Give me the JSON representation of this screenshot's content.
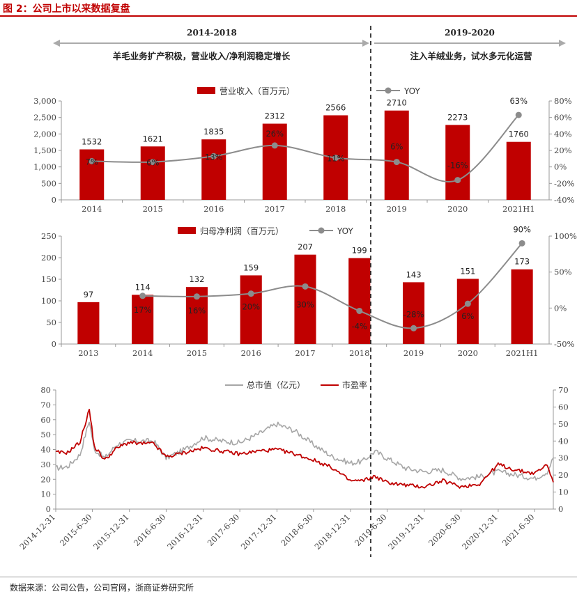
{
  "figure": {
    "title": "图 2：公司上市以来数据复盘",
    "source": "数据来源：公司公告，公司官网，浙商证券研究所"
  },
  "periods": [
    {
      "label": "2014-2018",
      "description": "羊毛业务扩产积极，营业收入/净利润稳定增长"
    },
    {
      "label": "2019-2020",
      "description": "注入羊绒业务，试水多元化运营"
    }
  ],
  "colors": {
    "bar": "#c00000",
    "yoy": "#8c8c8c",
    "mcap": "#a6a6a6",
    "pe": "#c00000",
    "accent": "#c00000"
  },
  "chart_data": [
    {
      "type": "bar",
      "categories": [
        "2014",
        "2015",
        "2016",
        "2017",
        "2018",
        "2019",
        "2020",
        "2021H1"
      ],
      "series": [
        {
          "name": "营业收入（百万元）",
          "axis": "left",
          "values": [
            1532,
            1621,
            1835,
            2312,
            2566,
            2710,
            2273,
            1760
          ]
        },
        {
          "name": "YOY",
          "type": "line",
          "axis": "right",
          "values": [
            7,
            6,
            13,
            26,
            11,
            6,
            -16,
            63
          ],
          "labels": [
            "7%",
            "6%",
            "13%",
            "26%",
            "11%",
            "6%",
            "-16%",
            "63%"
          ]
        }
      ],
      "y_left": {
        "min": 0,
        "max": 3000,
        "ticks": [
          "0",
          "500",
          "1,000",
          "1,500",
          "2,000",
          "2,500",
          "3,000"
        ]
      },
      "y_right": {
        "min": -40,
        "max": 80,
        "ticks": [
          "-40%",
          "-20%",
          "0%",
          "20%",
          "40%",
          "60%",
          "80%"
        ]
      },
      "legend": "top-center"
    },
    {
      "type": "bar",
      "categories": [
        "2013",
        "2014",
        "2015",
        "2016",
        "2017",
        "2018",
        "2019",
        "2020",
        "2021H1"
      ],
      "series": [
        {
          "name": "归母净利润（百万元）",
          "axis": "left",
          "values": [
            97,
            114,
            132,
            159,
            207,
            199,
            143,
            151,
            173
          ]
        },
        {
          "name": "YOY",
          "type": "line",
          "axis": "right",
          "values": [
            null,
            17,
            16,
            20,
            30,
            -4,
            -28,
            6,
            90
          ],
          "labels": [
            "",
            "17%",
            "16%",
            "20%",
            "30%",
            "-4%",
            "-28%",
            "6%",
            "90%"
          ]
        }
      ],
      "y_left": {
        "min": 0,
        "max": 250,
        "ticks": [
          "0",
          "50",
          "100",
          "150",
          "200",
          "250"
        ]
      },
      "y_right": {
        "min": -50,
        "max": 100,
        "ticks": [
          "-50%",
          "0%",
          "50%",
          "100%"
        ]
      },
      "legend": "top-center"
    },
    {
      "type": "line",
      "x_ticks": [
        "2014-12-31",
        "2015-6-30",
        "2015-12-31",
        "2016-6-30",
        "2016-12-31",
        "2017-6-30",
        "2017-12-31",
        "2018-6-30",
        "2018-12-31",
        "2019-6-30",
        "2019-12-31",
        "2020-6-30",
        "2020-12-31",
        "2021-6-30"
      ],
      "x_range": [
        "2014-12-31",
        "2021-9-30"
      ],
      "series": [
        {
          "name": "总市值（亿元）",
          "axis": "right",
          "x": [
            "2014-12-31",
            "2015-2-28",
            "2015-4-30",
            "2015-6-15",
            "2015-7-10",
            "2015-8-31",
            "2015-10-30",
            "2015-12-31",
            "2016-2-5",
            "2016-4-29",
            "2016-6-30",
            "2016-9-30",
            "2016-12-30",
            "2017-3-31",
            "2017-6-30",
            "2017-9-29",
            "2017-12-29",
            "2018-3-30",
            "2018-6-29",
            "2018-9-28",
            "2018-12-28",
            "2019-2-28",
            "2019-4-30",
            "2019-6-28",
            "2019-9-30",
            "2019-12-31",
            "2020-3-31",
            "2020-6-30",
            "2020-9-30",
            "2020-12-31",
            "2021-3-31",
            "2021-6-30",
            "2021-8-31",
            "2021-9-30"
          ],
          "values": [
            24,
            25,
            32,
            52,
            35,
            30,
            38,
            40,
            40,
            40,
            30,
            35,
            42,
            40,
            39,
            44,
            50,
            46,
            38,
            31,
            27,
            28,
            34,
            30,
            24,
            22,
            23,
            18,
            19,
            22,
            20,
            18,
            22,
            30
          ]
        },
        {
          "name": "市盈率",
          "axis": "left",
          "x": [
            "2014-12-31",
            "2015-2-28",
            "2015-4-30",
            "2015-6-15",
            "2015-7-10",
            "2015-8-31",
            "2015-10-30",
            "2015-12-31",
            "2016-2-5",
            "2016-4-29",
            "2016-6-30",
            "2016-9-30",
            "2016-12-30",
            "2017-3-31",
            "2017-6-30",
            "2017-9-29",
            "2017-12-29",
            "2018-3-30",
            "2018-6-29",
            "2018-9-28",
            "2018-12-28",
            "2019-2-28",
            "2019-4-30",
            "2019-6-28",
            "2019-9-30",
            "2019-12-31",
            "2020-3-31",
            "2020-6-30",
            "2020-9-30",
            "2020-12-31",
            "2021-3-31",
            "2021-6-30",
            "2021-8-31",
            "2021-9-30"
          ],
          "values": [
            38,
            38,
            45,
            67,
            42,
            33,
            41,
            45,
            44,
            44,
            35,
            38,
            41,
            39,
            37,
            39,
            40,
            37,
            33,
            28,
            19,
            19,
            22,
            18,
            16,
            15,
            19,
            15,
            17,
            30,
            26,
            24,
            30,
            18
          ]
        }
      ],
      "y_left": {
        "min": 0,
        "max": 80,
        "ticks": [
          "0",
          "10",
          "20",
          "30",
          "40",
          "50",
          "60",
          "70",
          "80"
        ]
      },
      "y_right": {
        "min": 0,
        "max": 70,
        "ticks": [
          "0",
          "10",
          "20",
          "30",
          "40",
          "50",
          "60",
          "70"
        ]
      },
      "legend": "top-center"
    }
  ]
}
